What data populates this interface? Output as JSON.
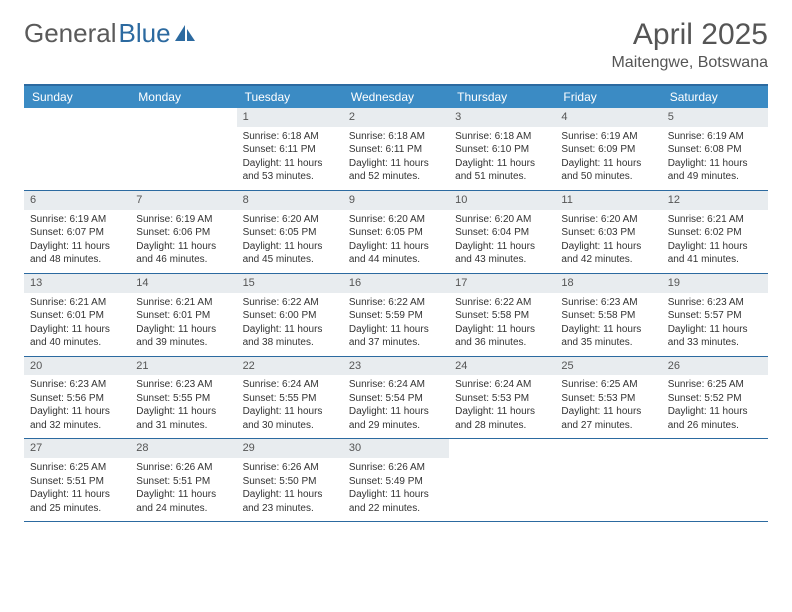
{
  "brand": {
    "word1": "General",
    "word2": "Blue"
  },
  "title": "April 2025",
  "location": "Maitengwe, Botswana",
  "colors": {
    "header_bar": "#3b8bc4",
    "border": "#2c6aa0",
    "daynum_bg": "#e8ecef",
    "text": "#333333",
    "title_text": "#555555"
  },
  "day_names": [
    "Sunday",
    "Monday",
    "Tuesday",
    "Wednesday",
    "Thursday",
    "Friday",
    "Saturday"
  ],
  "weeks": [
    [
      {
        "n": "",
        "sr": "",
        "ss": "",
        "dl": ""
      },
      {
        "n": "",
        "sr": "",
        "ss": "",
        "dl": ""
      },
      {
        "n": "1",
        "sr": "Sunrise: 6:18 AM",
        "ss": "Sunset: 6:11 PM",
        "dl": "Daylight: 11 hours and 53 minutes."
      },
      {
        "n": "2",
        "sr": "Sunrise: 6:18 AM",
        "ss": "Sunset: 6:11 PM",
        "dl": "Daylight: 11 hours and 52 minutes."
      },
      {
        "n": "3",
        "sr": "Sunrise: 6:18 AM",
        "ss": "Sunset: 6:10 PM",
        "dl": "Daylight: 11 hours and 51 minutes."
      },
      {
        "n": "4",
        "sr": "Sunrise: 6:19 AM",
        "ss": "Sunset: 6:09 PM",
        "dl": "Daylight: 11 hours and 50 minutes."
      },
      {
        "n": "5",
        "sr": "Sunrise: 6:19 AM",
        "ss": "Sunset: 6:08 PM",
        "dl": "Daylight: 11 hours and 49 minutes."
      }
    ],
    [
      {
        "n": "6",
        "sr": "Sunrise: 6:19 AM",
        "ss": "Sunset: 6:07 PM",
        "dl": "Daylight: 11 hours and 48 minutes."
      },
      {
        "n": "7",
        "sr": "Sunrise: 6:19 AM",
        "ss": "Sunset: 6:06 PM",
        "dl": "Daylight: 11 hours and 46 minutes."
      },
      {
        "n": "8",
        "sr": "Sunrise: 6:20 AM",
        "ss": "Sunset: 6:05 PM",
        "dl": "Daylight: 11 hours and 45 minutes."
      },
      {
        "n": "9",
        "sr": "Sunrise: 6:20 AM",
        "ss": "Sunset: 6:05 PM",
        "dl": "Daylight: 11 hours and 44 minutes."
      },
      {
        "n": "10",
        "sr": "Sunrise: 6:20 AM",
        "ss": "Sunset: 6:04 PM",
        "dl": "Daylight: 11 hours and 43 minutes."
      },
      {
        "n": "11",
        "sr": "Sunrise: 6:20 AM",
        "ss": "Sunset: 6:03 PM",
        "dl": "Daylight: 11 hours and 42 minutes."
      },
      {
        "n": "12",
        "sr": "Sunrise: 6:21 AM",
        "ss": "Sunset: 6:02 PM",
        "dl": "Daylight: 11 hours and 41 minutes."
      }
    ],
    [
      {
        "n": "13",
        "sr": "Sunrise: 6:21 AM",
        "ss": "Sunset: 6:01 PM",
        "dl": "Daylight: 11 hours and 40 minutes."
      },
      {
        "n": "14",
        "sr": "Sunrise: 6:21 AM",
        "ss": "Sunset: 6:01 PM",
        "dl": "Daylight: 11 hours and 39 minutes."
      },
      {
        "n": "15",
        "sr": "Sunrise: 6:22 AM",
        "ss": "Sunset: 6:00 PM",
        "dl": "Daylight: 11 hours and 38 minutes."
      },
      {
        "n": "16",
        "sr": "Sunrise: 6:22 AM",
        "ss": "Sunset: 5:59 PM",
        "dl": "Daylight: 11 hours and 37 minutes."
      },
      {
        "n": "17",
        "sr": "Sunrise: 6:22 AM",
        "ss": "Sunset: 5:58 PM",
        "dl": "Daylight: 11 hours and 36 minutes."
      },
      {
        "n": "18",
        "sr": "Sunrise: 6:23 AM",
        "ss": "Sunset: 5:58 PM",
        "dl": "Daylight: 11 hours and 35 minutes."
      },
      {
        "n": "19",
        "sr": "Sunrise: 6:23 AM",
        "ss": "Sunset: 5:57 PM",
        "dl": "Daylight: 11 hours and 33 minutes."
      }
    ],
    [
      {
        "n": "20",
        "sr": "Sunrise: 6:23 AM",
        "ss": "Sunset: 5:56 PM",
        "dl": "Daylight: 11 hours and 32 minutes."
      },
      {
        "n": "21",
        "sr": "Sunrise: 6:23 AM",
        "ss": "Sunset: 5:55 PM",
        "dl": "Daylight: 11 hours and 31 minutes."
      },
      {
        "n": "22",
        "sr": "Sunrise: 6:24 AM",
        "ss": "Sunset: 5:55 PM",
        "dl": "Daylight: 11 hours and 30 minutes."
      },
      {
        "n": "23",
        "sr": "Sunrise: 6:24 AM",
        "ss": "Sunset: 5:54 PM",
        "dl": "Daylight: 11 hours and 29 minutes."
      },
      {
        "n": "24",
        "sr": "Sunrise: 6:24 AM",
        "ss": "Sunset: 5:53 PM",
        "dl": "Daylight: 11 hours and 28 minutes."
      },
      {
        "n": "25",
        "sr": "Sunrise: 6:25 AM",
        "ss": "Sunset: 5:53 PM",
        "dl": "Daylight: 11 hours and 27 minutes."
      },
      {
        "n": "26",
        "sr": "Sunrise: 6:25 AM",
        "ss": "Sunset: 5:52 PM",
        "dl": "Daylight: 11 hours and 26 minutes."
      }
    ],
    [
      {
        "n": "27",
        "sr": "Sunrise: 6:25 AM",
        "ss": "Sunset: 5:51 PM",
        "dl": "Daylight: 11 hours and 25 minutes."
      },
      {
        "n": "28",
        "sr": "Sunrise: 6:26 AM",
        "ss": "Sunset: 5:51 PM",
        "dl": "Daylight: 11 hours and 24 minutes."
      },
      {
        "n": "29",
        "sr": "Sunrise: 6:26 AM",
        "ss": "Sunset: 5:50 PM",
        "dl": "Daylight: 11 hours and 23 minutes."
      },
      {
        "n": "30",
        "sr": "Sunrise: 6:26 AM",
        "ss": "Sunset: 5:49 PM",
        "dl": "Daylight: 11 hours and 22 minutes."
      },
      {
        "n": "",
        "sr": "",
        "ss": "",
        "dl": ""
      },
      {
        "n": "",
        "sr": "",
        "ss": "",
        "dl": ""
      },
      {
        "n": "",
        "sr": "",
        "ss": "",
        "dl": ""
      }
    ]
  ]
}
